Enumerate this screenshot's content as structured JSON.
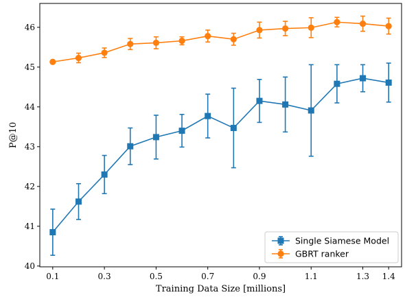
{
  "chart_data": {
    "type": "line",
    "title": "",
    "xlabel": "Training Data Size [millions]",
    "ylabel": "P@10",
    "xlim": [
      0.05,
      1.45
    ],
    "ylim": [
      39.98,
      46.6
    ],
    "xticks": [
      0.1,
      0.3,
      0.5,
      0.7,
      0.9,
      1.1,
      1.3,
      1.4
    ],
    "xtick_labels": [
      "0.1",
      "0.3",
      "0.5",
      "0.7",
      "0.9",
      "1.1",
      "1.3",
      "1.4"
    ],
    "yticks": [
      40,
      41,
      42,
      43,
      44,
      45,
      46
    ],
    "ytick_labels": [
      "40",
      "41",
      "42",
      "43",
      "44",
      "45",
      "46"
    ],
    "grid": false,
    "legend_position": "bottom-right",
    "x": [
      0.1,
      0.2,
      0.3,
      0.4,
      0.5,
      0.6,
      0.7,
      0.8,
      0.9,
      1.0,
      1.1,
      1.2,
      1.3,
      1.4
    ],
    "series": [
      {
        "name": "Single Siamese Model",
        "color": "#1f77b4",
        "marker": "square",
        "values": [
          40.85,
          41.62,
          42.3,
          43.01,
          43.24,
          43.4,
          43.77,
          43.47,
          44.15,
          44.06,
          43.91,
          44.58,
          44.72,
          44.61
        ],
        "errors": [
          0.58,
          0.45,
          0.48,
          0.46,
          0.55,
          0.41,
          0.55,
          1.0,
          0.54,
          0.69,
          1.15,
          0.48,
          0.34,
          0.49
        ]
      },
      {
        "name": "GBRT ranker",
        "color": "#ff7f0e",
        "marker": "circle",
        "values": [
          45.13,
          45.23,
          45.36,
          45.58,
          45.61,
          45.66,
          45.78,
          45.7,
          45.93,
          45.97,
          45.99,
          46.13,
          46.09,
          46.03
        ],
        "errors": [
          0.04,
          0.12,
          0.12,
          0.14,
          0.15,
          0.1,
          0.15,
          0.15,
          0.2,
          0.18,
          0.25,
          0.12,
          0.19,
          0.2
        ]
      }
    ]
  }
}
